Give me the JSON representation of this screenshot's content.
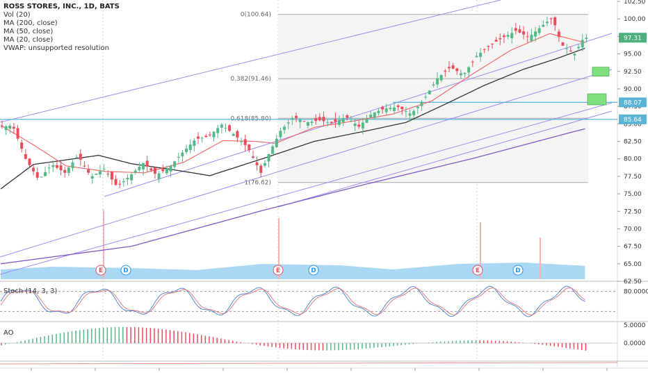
{
  "header": {
    "title": "ROSS STORES, INC., 1D, BATS",
    "indicators": [
      "Vol (20)",
      "MA (200, close)",
      "MA (50, close)",
      "MA (20, close)",
      "VWAP: unsupported resolution"
    ]
  },
  "price_axis": {
    "ticks": [
      "102.50",
      "100.00",
      "97.50",
      "95.00",
      "92.50",
      "90.00",
      "87.50",
      "85.00",
      "82.50",
      "80.00",
      "77.50",
      "75.00",
      "72.50",
      "70.00",
      "67.50",
      "65.00",
      "62.50"
    ],
    "tick_values": [
      102.5,
      100,
      97.5,
      95,
      92.5,
      90,
      87.5,
      85,
      82.5,
      80,
      77.5,
      75,
      72.5,
      70,
      67.5,
      65,
      62.5
    ],
    "badges": [
      {
        "label": "97.31",
        "value": 97.31,
        "color": "#4caf7d"
      },
      {
        "label": "88.07",
        "value": 88.07,
        "color": "#5ab4d6"
      },
      {
        "label": "85.64",
        "value": 85.64,
        "color": "#5ab4d6"
      }
    ]
  },
  "fib": {
    "levels": [
      {
        "label": "0(100.64)",
        "value": 100.64
      },
      {
        "label": "0.382(91.46)",
        "value": 91.46
      },
      {
        "label": "0.618(85.80)",
        "value": 85.8
      },
      {
        "label": "1(76.62)",
        "value": 76.62
      }
    ]
  },
  "events": [
    {
      "label": "E",
      "type": "earnings"
    },
    {
      "label": "D",
      "type": "dividend"
    },
    {
      "label": "E",
      "type": "earnings"
    },
    {
      "label": "D",
      "type": "dividend"
    },
    {
      "label": "E",
      "type": "earnings"
    },
    {
      "label": "D",
      "type": "dividend"
    }
  ],
  "stoch": {
    "label": "Stoch (14, 3, 3)",
    "ticks": [
      "80.0000"
    ],
    "tick_values": [
      80
    ]
  },
  "ao": {
    "label": "AO",
    "ticks": [
      "5.0000",
      "0.0000"
    ],
    "tick_values": [
      5,
      0
    ]
  },
  "colors": {
    "up": "#53b987",
    "down": "#eb4d5c",
    "ma20": "#f06262",
    "ma50": "#333333",
    "ma200": "#7e57c2",
    "channel": "#9c8cf0",
    "hline": "#5ab4d6",
    "volume": "#9ad0f2",
    "green_box": "#7ee07e"
  },
  "chart_data": {
    "type": "candlestick",
    "title": "ROSS STORES, INC., 1D, BATS",
    "ylim": [
      62.5,
      102.5
    ],
    "last_price": 97.31,
    "horizontal_levels": [
      88.07,
      85.64
    ],
    "note_series": "Approximate daily closes read from the chart (about 6 months of sessions)",
    "close_keypoints": [
      [
        0,
        84.5
      ],
      [
        10,
        84.8
      ],
      [
        20,
        80.0
      ],
      [
        30,
        77.0
      ],
      [
        40,
        79.2
      ],
      [
        50,
        78.0
      ],
      [
        60,
        80.5
      ],
      [
        70,
        77.4
      ],
      [
        80,
        78.6
      ],
      [
        90,
        76.0
      ],
      [
        100,
        77.6
      ],
      [
        110,
        79.4
      ],
      [
        120,
        77.7
      ],
      [
        130,
        78.8
      ],
      [
        140,
        80.9
      ],
      [
        150,
        82.8
      ],
      [
        160,
        83.2
      ],
      [
        170,
        84.9
      ],
      [
        180,
        83.4
      ],
      [
        190,
        81.6
      ],
      [
        200,
        78.0
      ],
      [
        205,
        80.3
      ],
      [
        215,
        84.0
      ],
      [
        225,
        86.0
      ],
      [
        235,
        85.2
      ],
      [
        245,
        85.5
      ],
      [
        255,
        85.1
      ],
      [
        265,
        86.0
      ],
      [
        275,
        84.6
      ],
      [
        285,
        86.5
      ],
      [
        295,
        87.2
      ],
      [
        305,
        87.4
      ],
      [
        315,
        86.4
      ],
      [
        325,
        88.6
      ],
      [
        335,
        91.5
      ],
      [
        345,
        93.1
      ],
      [
        355,
        92.0
      ],
      [
        365,
        94.7
      ],
      [
        375,
        96.2
      ],
      [
        385,
        97.3
      ],
      [
        395,
        98.3
      ],
      [
        405,
        97.4
      ],
      [
        415,
        99.0
      ],
      [
        423,
        100.2
      ],
      [
        430,
        96.3
      ],
      [
        440,
        95.0
      ],
      [
        447,
        97.31
      ]
    ],
    "ma20_keypoints": [
      [
        0,
        84.8
      ],
      [
        25,
        82.0
      ],
      [
        50,
        79.0
      ],
      [
        80,
        78.2
      ],
      [
        110,
        78.0
      ],
      [
        140,
        79.5
      ],
      [
        170,
        82.6
      ],
      [
        195,
        82.5
      ],
      [
        210,
        82.2
      ],
      [
        240,
        84.5
      ],
      [
        270,
        85.4
      ],
      [
        300,
        86.4
      ],
      [
        330,
        88.3
      ],
      [
        360,
        92.0
      ],
      [
        390,
        95.5
      ],
      [
        420,
        97.9
      ],
      [
        447,
        96.6
      ]
    ],
    "ma50_keypoints": [
      [
        0,
        75.7
      ],
      [
        25,
        79.2
      ],
      [
        75,
        80.5
      ],
      [
        100,
        79.3
      ],
      [
        130,
        78.5
      ],
      [
        160,
        77.6
      ],
      [
        200,
        80.0
      ],
      [
        240,
        82.5
      ],
      [
        280,
        84.0
      ],
      [
        310,
        85.2
      ],
      [
        340,
        87.8
      ],
      [
        370,
        90.5
      ],
      [
        400,
        92.8
      ],
      [
        425,
        94.3
      ],
      [
        447,
        95.8
      ]
    ],
    "ma200_keypoints": [
      [
        0,
        65.0
      ],
      [
        100,
        67.5
      ],
      [
        200,
        72.6
      ],
      [
        280,
        76.4
      ],
      [
        360,
        80.0
      ],
      [
        447,
        84.3
      ]
    ],
    "volume_profile_keypoints": [
      [
        0,
        0.35
      ],
      [
        40,
        0.45
      ],
      [
        100,
        0.4
      ],
      [
        150,
        0.33
      ],
      [
        200,
        0.55
      ],
      [
        260,
        0.5
      ],
      [
        300,
        0.35
      ],
      [
        350,
        0.55
      ],
      [
        400,
        0.6
      ],
      [
        447,
        0.48
      ]
    ],
    "stoch_ticks": [
      80
    ],
    "ao_ticks": [
      5,
      0
    ]
  }
}
